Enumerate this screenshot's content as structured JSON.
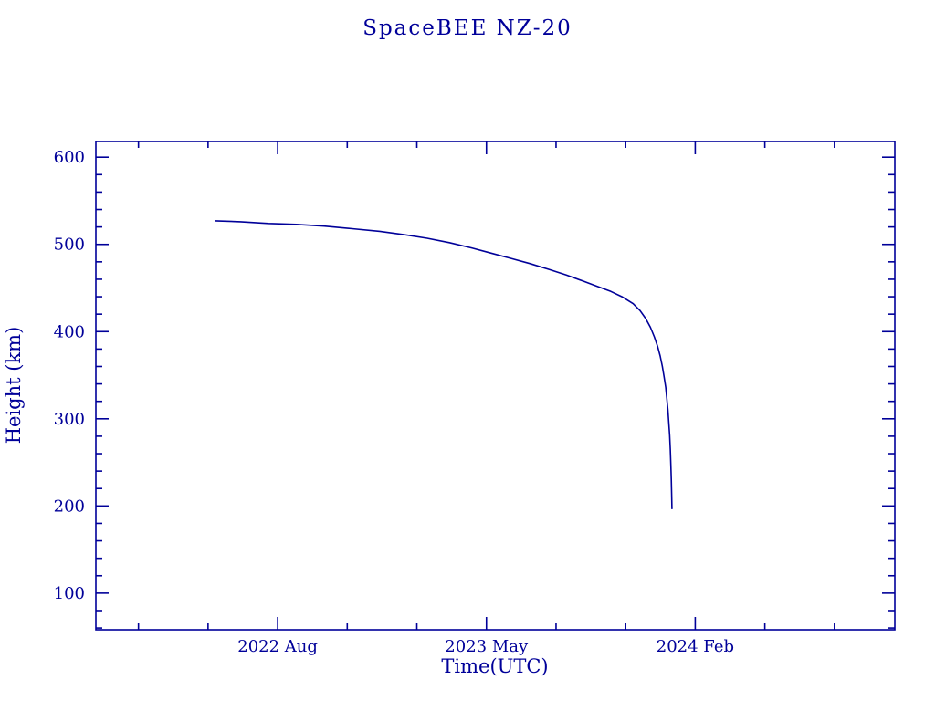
{
  "page": {
    "background": "#ffffff"
  },
  "chart_data": {
    "type": "line",
    "title": "SpaceBEE NZ-20",
    "xlabel": "Time(UTC)",
    "ylabel": "Height (km)",
    "color": "#000099",
    "xlim": [
      2021.93,
      2024.8
    ],
    "ylim": [
      58,
      618
    ],
    "grid": false,
    "legend": "none",
    "x_ticks": [
      {
        "value": 2022.583,
        "label": "2022 Aug"
      },
      {
        "value": 2023.333,
        "label": "2023 May"
      },
      {
        "value": 2024.083,
        "label": "2024 Feb"
      }
    ],
    "x_minor_step": 0.25,
    "y_ticks": [
      {
        "value": 100,
        "label": "100"
      },
      {
        "value": 200,
        "label": "200"
      },
      {
        "value": 300,
        "label": "300"
      },
      {
        "value": 400,
        "label": "400"
      },
      {
        "value": 500,
        "label": "500"
      },
      {
        "value": 600,
        "label": "600"
      }
    ],
    "y_minor_step": 20,
    "series": [
      {
        "name": "orbital-height-km",
        "points": [
          [
            2022.36,
            527
          ],
          [
            2022.45,
            526
          ],
          [
            2022.55,
            524
          ],
          [
            2022.65,
            523
          ],
          [
            2022.75,
            521
          ],
          [
            2022.85,
            518
          ],
          [
            2022.95,
            515
          ],
          [
            2023.04,
            511
          ],
          [
            2023.12,
            507
          ],
          [
            2023.2,
            502
          ],
          [
            2023.28,
            496
          ],
          [
            2023.35,
            490
          ],
          [
            2023.42,
            484
          ],
          [
            2023.49,
            478
          ],
          [
            2023.56,
            471
          ],
          [
            2023.62,
            465
          ],
          [
            2023.68,
            458
          ],
          [
            2023.73,
            452
          ],
          [
            2023.78,
            446
          ],
          [
            2023.82,
            440
          ],
          [
            2023.86,
            432
          ],
          [
            2023.885,
            424
          ],
          [
            2023.905,
            415
          ],
          [
            2023.922,
            405
          ],
          [
            2023.936,
            394
          ],
          [
            2023.948,
            383
          ],
          [
            2023.957,
            372
          ],
          [
            2023.965,
            360
          ],
          [
            2023.971,
            348
          ],
          [
            2023.977,
            336
          ],
          [
            2023.981,
            323
          ],
          [
            2023.985,
            310
          ],
          [
            2023.988,
            296
          ],
          [
            2023.991,
            281
          ],
          [
            2023.9935,
            265
          ],
          [
            2023.9955,
            247
          ],
          [
            2023.997,
            230
          ],
          [
            2023.9985,
            212
          ],
          [
            2023.9995,
            197
          ]
        ]
      }
    ]
  }
}
